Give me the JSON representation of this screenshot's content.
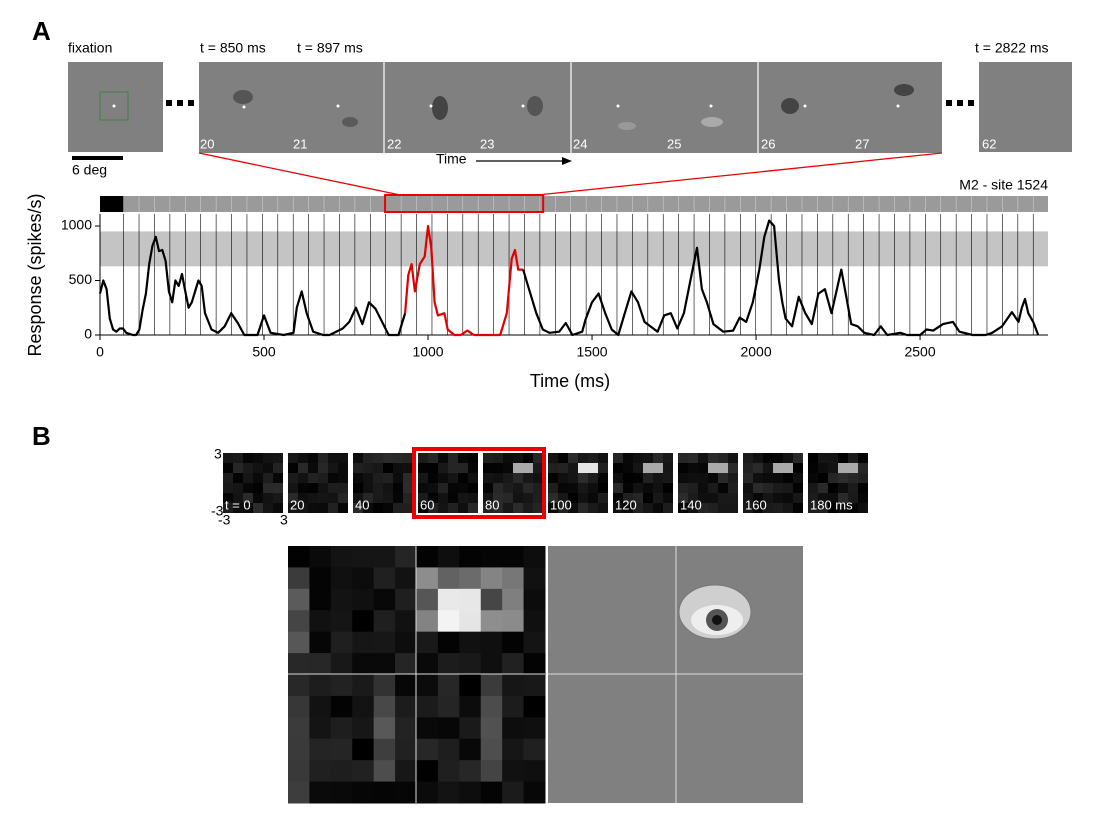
{
  "figure": {
    "panel_a": "A",
    "panel_b": "B",
    "frames": {
      "fixation": "fixation",
      "t_first": "t = 850 ms",
      "t_second": "t = 897 ms",
      "t_last": "t = 2822 ms",
      "numbers": [
        "20",
        "21",
        "22",
        "23",
        "24",
        "25",
        "26",
        "27",
        "62"
      ],
      "scale": "6 deg",
      "time": "Time"
    },
    "rf": {
      "labels": [
        "t = 0",
        "20",
        "40",
        "60",
        "80",
        "100",
        "120",
        "140",
        "160",
        "180 ms"
      ],
      "axis": {
        "top": "3",
        "bottom": "-3",
        "left": "-3",
        "right": "3"
      }
    }
  },
  "chart_data": {
    "type": "line",
    "site_label": "M2 - site 1524",
    "xlabel": "Time (ms)",
    "ylabel": "Response (spikes/s)",
    "xlim": [
      0,
      2890
    ],
    "ylim": [
      0,
      1110
    ],
    "xticks": [
      0,
      500,
      1000,
      1500,
      2000,
      2500
    ],
    "yticks": [
      0,
      500,
      1000
    ],
    "band": [
      630,
      950
    ],
    "highlight": [
      930,
      1290
    ],
    "frame_times": [
      72,
      119,
      166,
      213,
      260,
      307,
      354,
      401,
      448,
      495,
      542,
      589,
      636,
      683,
      730,
      777,
      824,
      871,
      918,
      965,
      1012,
      1059,
      1106,
      1153,
      1200,
      1247,
      1294,
      1341,
      1388,
      1435,
      1482,
      1529,
      1576,
      1623,
      1670,
      1717,
      1764,
      1811,
      1858,
      1905,
      1952,
      1999,
      2046,
      2093,
      2140,
      2187,
      2234,
      2281,
      2328,
      2375,
      2422,
      2469,
      2516,
      2563,
      2610,
      2657,
      2704,
      2751,
      2798,
      2845
    ],
    "series": [
      {
        "color": "#000000",
        "x": [
          0,
          10,
          20,
          30,
          40,
          50,
          60,
          70,
          80,
          100,
          110,
          120,
          130,
          140,
          150,
          160,
          170,
          180,
          190,
          200,
          210,
          220,
          230,
          240,
          250,
          260,
          270,
          280,
          300,
          310,
          320,
          340,
          360,
          380,
          400,
          420,
          440,
          480,
          500,
          520,
          560,
          590,
          600,
          615,
          630,
          650,
          680,
          700,
          740,
          760,
          780,
          800,
          820,
          840,
          860,
          880,
          910,
          930
        ],
        "values": [
          380,
          500,
          420,
          150,
          50,
          30,
          60,
          60,
          20,
          0,
          0,
          50,
          230,
          380,
          650,
          820,
          900,
          770,
          780,
          680,
          400,
          300,
          500,
          450,
          560,
          400,
          250,
          300,
          500,
          450,
          200,
          50,
          20,
          80,
          200,
          110,
          0,
          0,
          180,
          20,
          0,
          20,
          250,
          400,
          200,
          30,
          0,
          0,
          60,
          120,
          250,
          100,
          300,
          240,
          120,
          0,
          0,
          200
        ]
      },
      {
        "color": "#e00000",
        "x": [
          930,
          940,
          950,
          960,
          975,
          990,
          1000,
          1010,
          1020,
          1030,
          1050,
          1060,
          1080,
          1100,
          1120,
          1140,
          1220,
          1240,
          1255,
          1265,
          1275,
          1290
        ],
        "values": [
          200,
          550,
          650,
          400,
          650,
          720,
          1000,
          800,
          300,
          180,
          200,
          50,
          0,
          0,
          40,
          0,
          0,
          200,
          700,
          780,
          600,
          600
        ]
      },
      {
        "color": "#000000",
        "x": [
          1290,
          1300,
          1310,
          1330,
          1350,
          1370,
          1400,
          1420,
          1440,
          1470,
          1480,
          1500,
          1520,
          1540,
          1560,
          1580,
          1600,
          1620,
          1640,
          1660,
          1700,
          1720,
          1740,
          1760,
          1780,
          1800,
          1820,
          1835,
          1850,
          1870,
          1900,
          1930,
          1950,
          1970,
          1990,
          2010,
          2025,
          2040,
          2055,
          2070,
          2080,
          2090,
          2110,
          2130,
          2150,
          2170,
          2190,
          2210,
          2230,
          2260,
          2275,
          2290,
          2310,
          2330,
          2360,
          2380,
          2400,
          2440,
          2460,
          2500,
          2520,
          2540,
          2570,
          2600,
          2620,
          2660,
          2700,
          2720,
          2750,
          2780,
          2800,
          2810,
          2820,
          2830,
          2845,
          2860
        ],
        "values": [
          600,
          500,
          400,
          200,
          50,
          20,
          30,
          110,
          0,
          30,
          140,
          300,
          380,
          200,
          50,
          0,
          200,
          400,
          300,
          120,
          30,
          180,
          200,
          60,
          200,
          500,
          800,
          420,
          300,
          100,
          30,
          40,
          160,
          120,
          300,
          600,
          900,
          1050,
          1000,
          500,
          300,
          150,
          80,
          350,
          200,
          100,
          380,
          420,
          200,
          600,
          350,
          100,
          80,
          20,
          0,
          80,
          0,
          20,
          0,
          0,
          50,
          40,
          100,
          120,
          30,
          0,
          0,
          20,
          80,
          210,
          120,
          250,
          330,
          200,
          120,
          0
        ]
      }
    ]
  }
}
